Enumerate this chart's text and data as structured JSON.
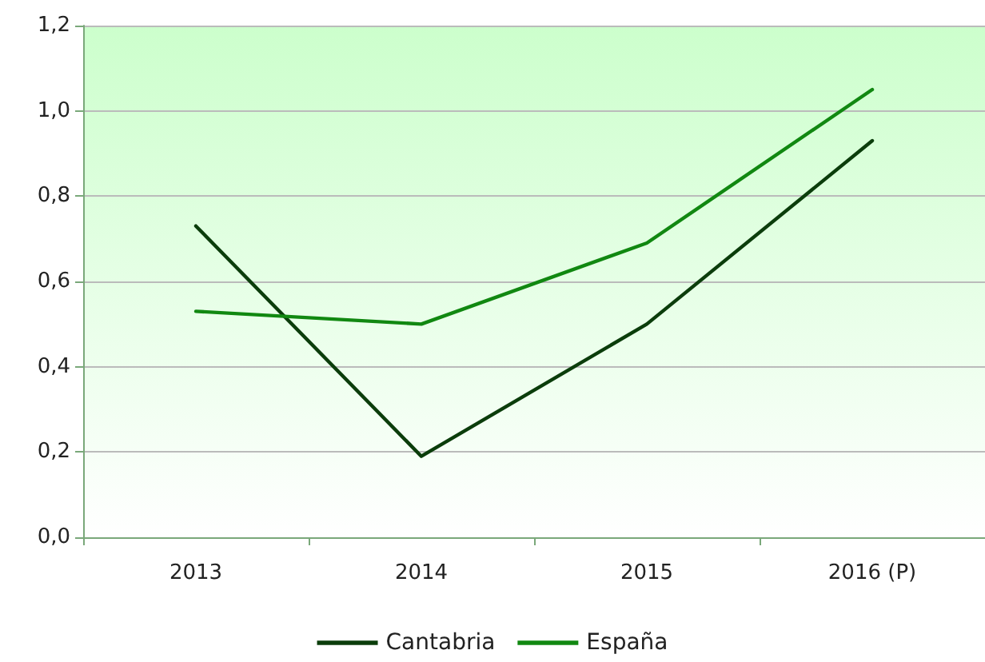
{
  "chart_data": {
    "type": "line",
    "categories": [
      "2013",
      "2014",
      "2015",
      "2016 (P)"
    ],
    "series": [
      {
        "name": "Cantabria",
        "color": "#0b3d0b",
        "values": [
          0.73,
          0.19,
          0.5,
          0.93
        ]
      },
      {
        "name": "España",
        "color": "#118811",
        "values": [
          0.53,
          0.5,
          0.69,
          1.05
        ]
      }
    ],
    "ylim": [
      0,
      1.2
    ],
    "yticks": [
      {
        "value": 0,
        "label": "0,0"
      },
      {
        "value": 0.2,
        "label": "0,2"
      },
      {
        "value": 0.4,
        "label": "0,4"
      },
      {
        "value": 0.6,
        "label": "0,6"
      },
      {
        "value": 0.8,
        "label": "0,8"
      },
      {
        "value": 1.0,
        "label": "1,0"
      },
      {
        "value": 1.2,
        "label": "1,2"
      }
    ],
    "grid": "y",
    "legend": "bottom",
    "marker": "none",
    "line_style": "solid"
  }
}
